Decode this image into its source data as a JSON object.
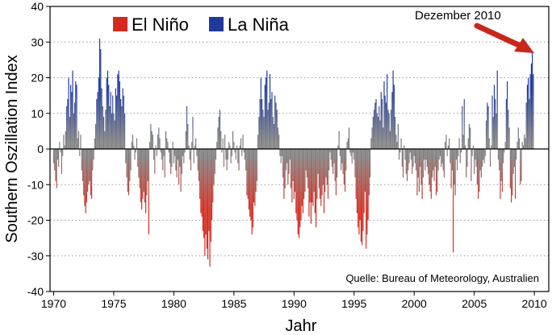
{
  "chart_data": {
    "type": "bar",
    "title": "",
    "xlabel": "Jahr",
    "ylabel": "Southern Oszillation Index",
    "xlim": [
      1969.7,
      2011.2
    ],
    "ylim": [
      -40,
      40
    ],
    "x_ticks": [
      1970,
      1975,
      1980,
      1985,
      1990,
      1995,
      2000,
      2005,
      2010
    ],
    "y_ticks": [
      -40,
      -30,
      -20,
      -10,
      0,
      10,
      20,
      30,
      40
    ],
    "grid": "horizontal dotted",
    "resolution": "monthly",
    "legend": {
      "position": "top-left",
      "entries": [
        {
          "label": "El Niño",
          "color": "#d42a1e"
        },
        {
          "label": "La Niña",
          "color": "#1f3a9a"
        }
      ]
    },
    "colors": {
      "neutral": "#808080",
      "el_nino": "#d42a1e",
      "la_nina": "#1f3a9a"
    },
    "annotation": {
      "text": "Dezember 2010",
      "x": 2010.9,
      "y": 27.1,
      "arrow_color": "#c8281c"
    },
    "source": "Quelle: Bureau of Meteorology, Australien",
    "series": [
      {
        "values": [
          -4,
          -6,
          -9,
          -11,
          -3,
          -5,
          2,
          -1,
          -7,
          -2,
          4,
          1,
          5,
          12,
          14,
          20,
          9,
          18,
          16,
          22,
          10,
          13,
          19,
          18,
          3,
          5,
          -2,
          4,
          -6,
          -9,
          -13,
          -16,
          -18,
          -15,
          -12,
          -10,
          -9,
          -13,
          -14,
          -6,
          -3,
          3,
          7,
          14,
          16,
          20,
          31,
          28,
          17,
          12,
          9,
          5,
          11,
          20,
          22,
          18,
          12,
          16,
          10,
          15,
          10,
          8,
          17,
          15,
          21,
          22,
          19,
          14,
          12,
          17,
          15,
          10,
          -4,
          -8,
          -12,
          -13,
          -9,
          -6,
          2,
          4,
          1,
          -3,
          -1,
          3,
          -5,
          -8,
          -11,
          -15,
          -17,
          -14,
          -12,
          -15,
          -18,
          -13,
          -9,
          -24,
          2,
          7,
          5,
          4,
          -3,
          -7,
          1,
          -2,
          4,
          6,
          3,
          -1,
          -3,
          -6,
          -2,
          -8,
          5,
          3,
          2,
          -1,
          -4,
          -7,
          -5,
          2,
          -4,
          -2,
          -6,
          -8,
          -3,
          -10,
          -5,
          -12,
          -7,
          -2,
          -4,
          -1,
          5,
          12,
          7,
          1,
          -3,
          -6,
          2,
          9,
          -4,
          1,
          3,
          -2,
          -6,
          -9,
          -14,
          -18,
          -19,
          -23,
          -25,
          -30,
          -24,
          -28,
          -31,
          -23,
          -33,
          -26,
          -20,
          -15,
          -10,
          -7,
          -3,
          2,
          6,
          9,
          11,
          5,
          -1,
          3,
          -5,
          4,
          -3,
          -6,
          -3,
          2,
          1,
          -4,
          -2,
          5,
          2,
          -1,
          -3,
          1,
          -4,
          -6,
          1,
          3,
          -2,
          4,
          -1,
          -3,
          -6,
          -13,
          -14,
          -17,
          -19,
          -20,
          -24,
          -22,
          -15,
          -16,
          -12,
          -9,
          4,
          9,
          14,
          20,
          14,
          11,
          9,
          18,
          20,
          22,
          11,
          13,
          21,
          14,
          16,
          9,
          7,
          15,
          13,
          11,
          6,
          4,
          -2,
          -4,
          -2,
          -8,
          -14,
          -11,
          -6,
          -4,
          -10,
          -7,
          -3,
          -11,
          -15,
          -9,
          -14,
          -12,
          -18,
          -20,
          -24,
          -25,
          -22,
          -20,
          -16,
          -18,
          -14,
          -12,
          -6,
          -8,
          -11,
          -19,
          -15,
          -21,
          -15,
          -16,
          -12,
          -18,
          -22,
          -14,
          -7,
          -11,
          -14,
          -16,
          -13,
          -10,
          -18,
          -12,
          -8,
          -10,
          -14,
          -6,
          -1,
          -3,
          -5,
          -7,
          -4,
          -9,
          -13,
          -8,
          1,
          5,
          -2,
          -6,
          -4,
          -7,
          -10,
          -12,
          -6,
          2,
          3,
          6,
          -1,
          -2,
          -4,
          -1,
          -3,
          -8,
          -14,
          -18,
          -22,
          -24,
          -20,
          -26,
          -27,
          -23,
          -18,
          -12,
          -28,
          -24,
          -20,
          -13,
          -8,
          3,
          6,
          9,
          11,
          13,
          14,
          10,
          9,
          12,
          8,
          16,
          14,
          6,
          19,
          15,
          13,
          21,
          11,
          10,
          5,
          11,
          16,
          22,
          18,
          9,
          4,
          2,
          7,
          -3,
          -1,
          3,
          -5,
          -8,
          1,
          -3,
          -7,
          -9,
          -6,
          -4,
          -1,
          -3,
          -7,
          -5,
          -2,
          -4,
          -6,
          -13,
          -8,
          -12,
          -5,
          -10,
          -14,
          -8,
          -3,
          -6,
          -3,
          -5,
          -7,
          -10,
          -12,
          -14,
          -8,
          -6,
          -9,
          -5,
          -13,
          -12,
          -6,
          -3,
          -2,
          -5,
          -4,
          -6,
          -8,
          2,
          4,
          -2,
          1,
          3,
          -4,
          -11,
          -6,
          -29,
          -10,
          -13,
          -3,
          -6,
          -2,
          3,
          -4,
          -1,
          12,
          4,
          14,
          1,
          -8,
          -5,
          3,
          7,
          6,
          -9,
          -2,
          1,
          -7,
          -3,
          -5,
          -10,
          -14,
          -12,
          -6,
          -8,
          -5,
          -3,
          -4,
          -2,
          8,
          13,
          12,
          3,
          -5,
          1,
          15,
          9,
          18,
          14,
          10,
          22,
          -3,
          -6,
          -14,
          -9,
          -12,
          -4,
          -1,
          2,
          14,
          19,
          11,
          6,
          -11,
          -15,
          -13,
          -7,
          -5,
          -14,
          -3,
          2,
          6,
          3,
          -10,
          -9,
          2,
          1,
          4,
          3,
          13,
          18,
          20,
          14,
          21,
          24,
          27,
          21
        ]
      }
    ]
  }
}
